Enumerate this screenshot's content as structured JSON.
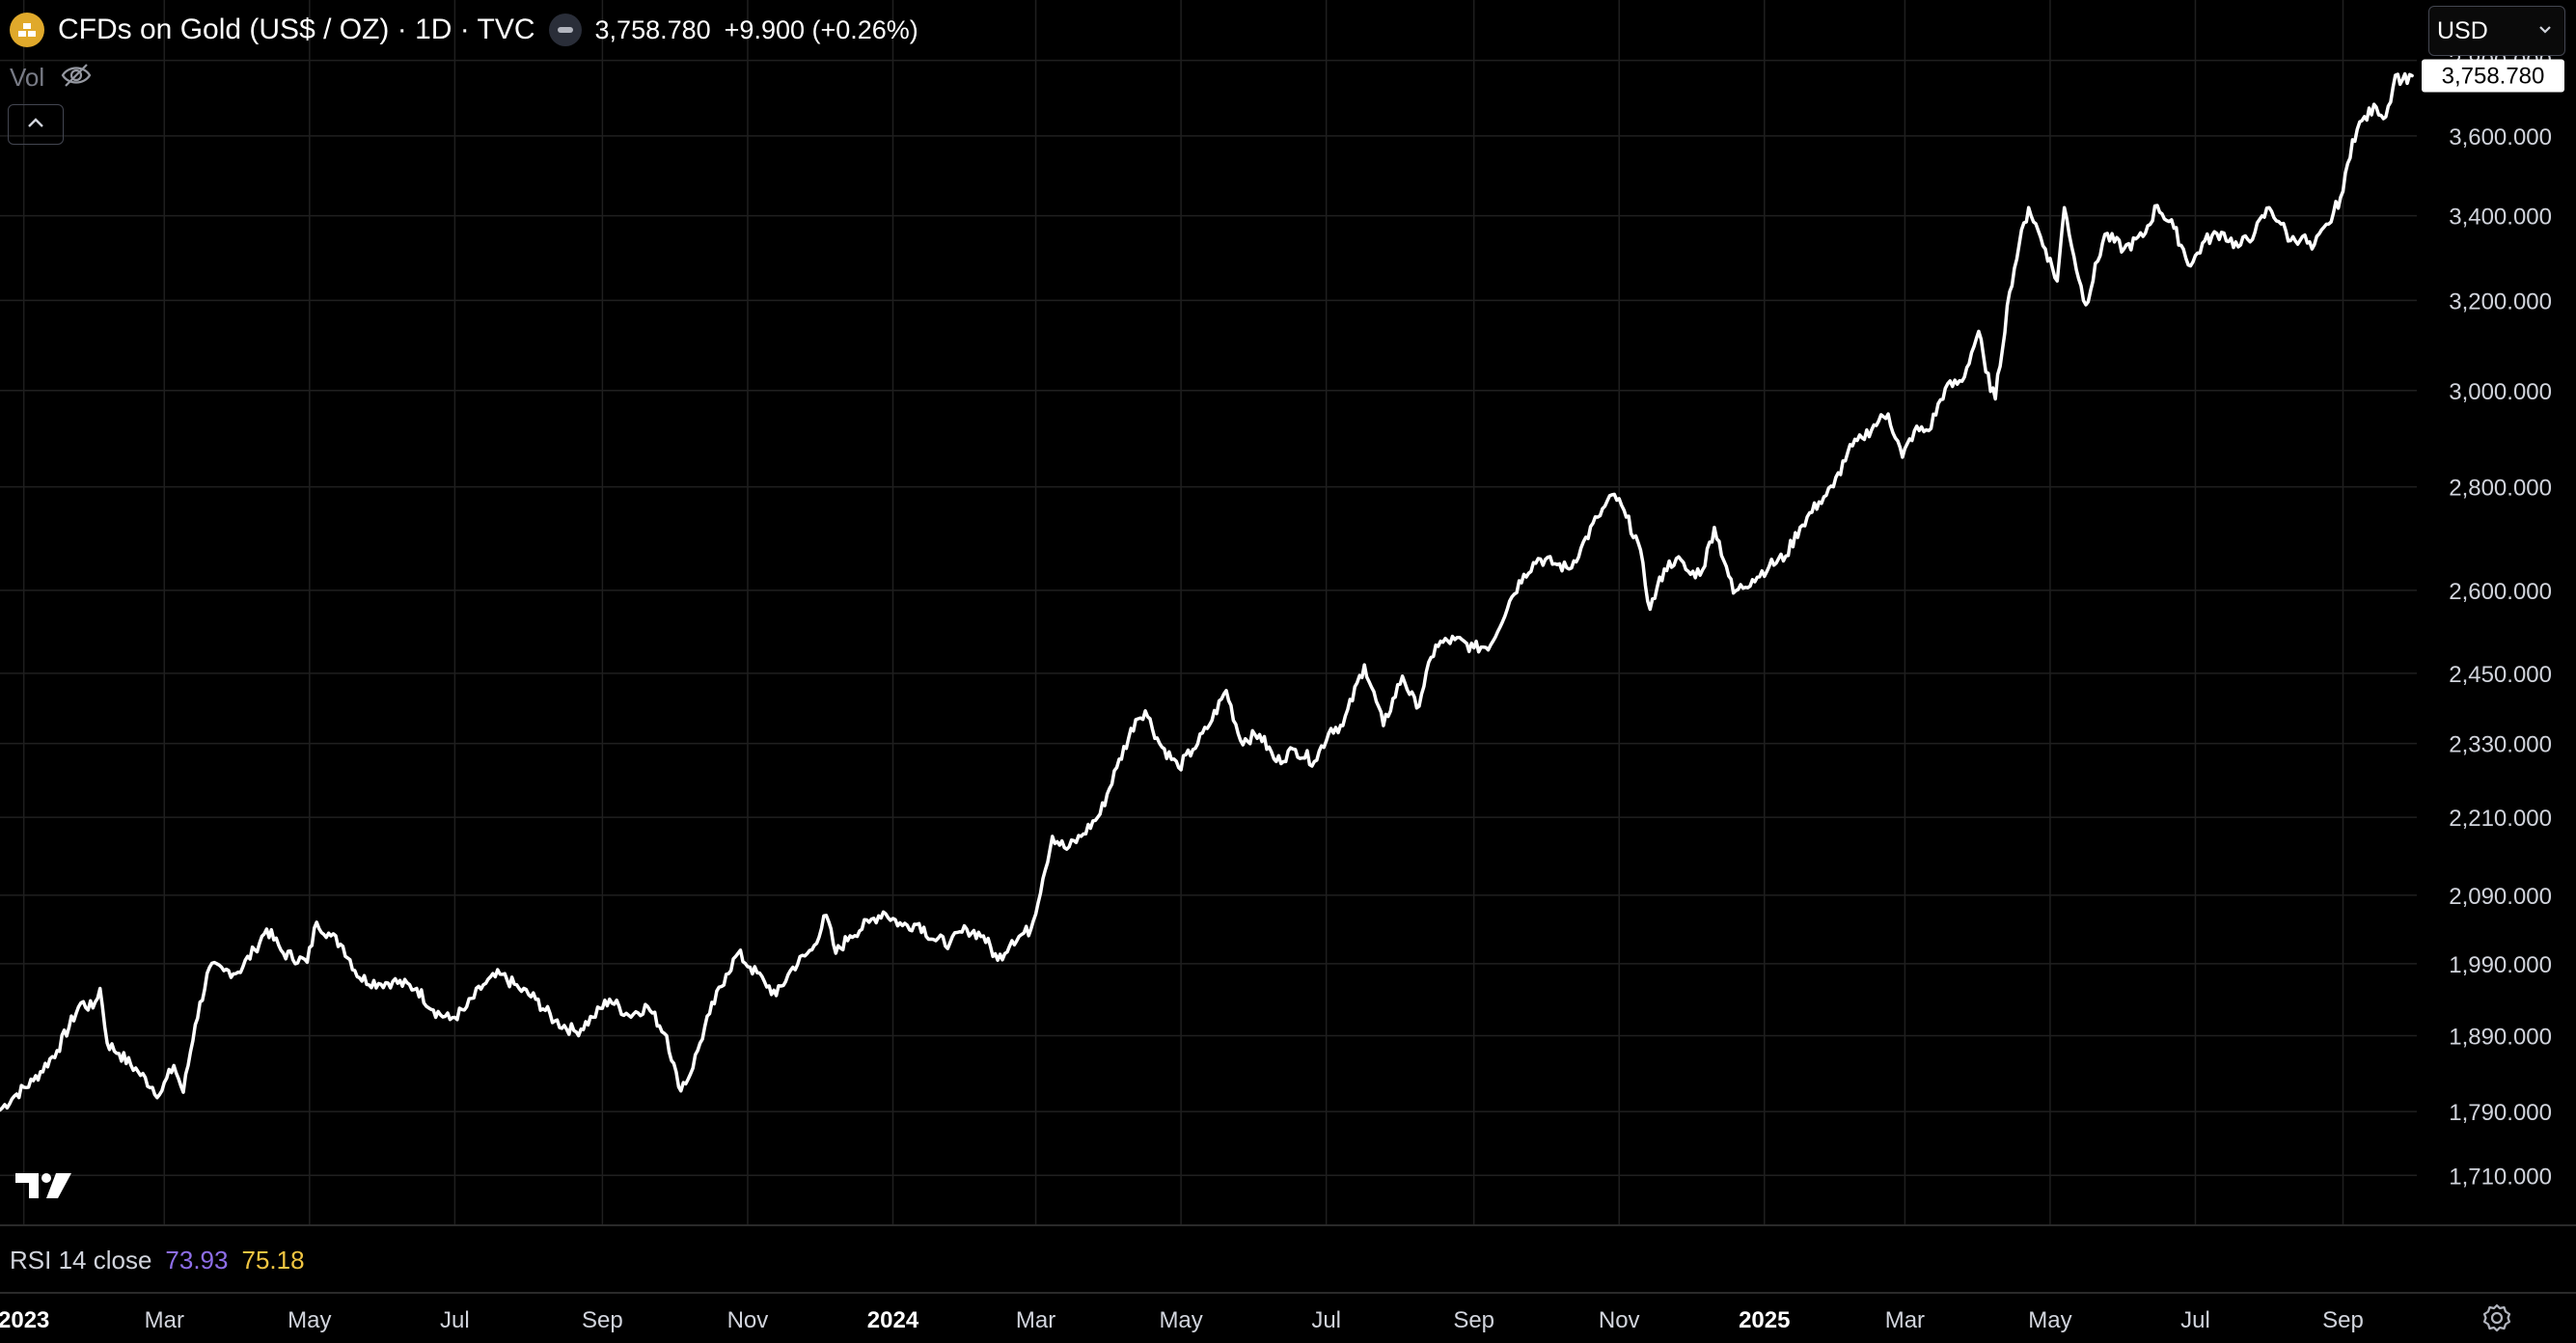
{
  "header": {
    "symbol_title": "CFDs on Gold (US$ / OZ) · 1D · TVC",
    "last_price": "3,758.780",
    "change": "+9.900 (+0.26%)",
    "icons": {
      "symbol": "gold-bars-icon",
      "market_status": "market-status-icon"
    }
  },
  "volume": {
    "label": "Vol",
    "icon": "eye-off-icon"
  },
  "collapse_button": {
    "icon": "chevron-up-icon"
  },
  "currency_selector": {
    "label": "USD",
    "icon": "chevron-down-icon"
  },
  "rsi": {
    "label": "RSI 14 close",
    "value1": "73.93",
    "value2": "75.18"
  },
  "logo": {
    "icon": "tradingview-logo-icon"
  },
  "settings": {
    "icon": "gear-icon"
  },
  "colors": {
    "background": "#000000",
    "line": "#ffffff",
    "grid": "#1f1f1f",
    "rsi_value1": "#8e6ee8",
    "rsi_value2": "#f0c542",
    "symbol_icon": "#e0a92b"
  },
  "chart_data": {
    "type": "line",
    "title": "CFDs on Gold (US$ / OZ) · 1D · TVC",
    "xlabel": "",
    "ylabel": "",
    "y_scale": "log",
    "grid": true,
    "xlim": [
      "2022-12-22",
      "2025-10-02"
    ],
    "ylim": [
      1650,
      3860
    ],
    "last_value_label": "3,758.780",
    "y_ticks": [
      "1,710.000",
      "1,790.000",
      "1,890.000",
      "1,990.000",
      "2,090.000",
      "2,210.000",
      "2,330.000",
      "2,450.000",
      "2,600.000",
      "2,800.000",
      "3,000.000",
      "3,200.000",
      "3,400.000",
      "3,600.000",
      "3,800.000"
    ],
    "y_tick_values": [
      1710,
      1790,
      1890,
      1990,
      2090,
      2210,
      2330,
      2450,
      2600,
      2800,
      3000,
      3200,
      3400,
      3600,
      3800
    ],
    "x_ticks": [
      {
        "label": "2023",
        "date": "2023-01-01",
        "year": true
      },
      {
        "label": "Mar",
        "date": "2023-03-01",
        "year": false
      },
      {
        "label": "May",
        "date": "2023-05-01",
        "year": false
      },
      {
        "label": "Jul",
        "date": "2023-07-01",
        "year": false
      },
      {
        "label": "Sep",
        "date": "2023-09-01",
        "year": false
      },
      {
        "label": "Nov",
        "date": "2023-11-01",
        "year": false
      },
      {
        "label": "2024",
        "date": "2024-01-01",
        "year": true
      },
      {
        "label": "Mar",
        "date": "2024-03-01",
        "year": false
      },
      {
        "label": "May",
        "date": "2024-05-01",
        "year": false
      },
      {
        "label": "Jul",
        "date": "2024-07-01",
        "year": false
      },
      {
        "label": "Sep",
        "date": "2024-09-01",
        "year": false
      },
      {
        "label": "Nov",
        "date": "2024-11-01",
        "year": false
      },
      {
        "label": "2025",
        "date": "2025-01-01",
        "year": true
      },
      {
        "label": "Mar",
        "date": "2025-03-01",
        "year": false
      },
      {
        "label": "May",
        "date": "2025-05-01",
        "year": false
      },
      {
        "label": "Jul",
        "date": "2025-07-01",
        "year": false
      },
      {
        "label": "Sep",
        "date": "2025-09-01",
        "year": false
      }
    ],
    "series": [
      {
        "values": [
          [
            "2022-12-22",
            1792
          ],
          [
            "2022-12-28",
            1810
          ],
          [
            "2023-01-05",
            1830
          ],
          [
            "2023-01-15",
            1870
          ],
          [
            "2023-01-25",
            1935
          ],
          [
            "2023-01-30",
            1928
          ],
          [
            "2023-02-02",
            1955
          ],
          [
            "2023-02-05",
            1880
          ],
          [
            "2023-02-10",
            1866
          ],
          [
            "2023-02-18",
            1842
          ],
          [
            "2023-02-27",
            1812
          ],
          [
            "2023-03-05",
            1850
          ],
          [
            "2023-03-09",
            1815
          ],
          [
            "2023-03-14",
            1905
          ],
          [
            "2023-03-20",
            1985
          ],
          [
            "2023-03-26",
            1980
          ],
          [
            "2023-04-01",
            1978
          ],
          [
            "2023-04-08",
            2010
          ],
          [
            "2023-04-13",
            2040
          ],
          [
            "2023-04-20",
            2005
          ],
          [
            "2023-04-30",
            1992
          ],
          [
            "2023-05-04",
            2050
          ],
          [
            "2023-05-10",
            2030
          ],
          [
            "2023-05-15",
            2015
          ],
          [
            "2023-05-22",
            1970
          ],
          [
            "2023-05-30",
            1962
          ],
          [
            "2023-06-05",
            1965
          ],
          [
            "2023-06-15",
            1955
          ],
          [
            "2023-06-22",
            1925
          ],
          [
            "2023-06-29",
            1912
          ],
          [
            "2023-07-05",
            1925
          ],
          [
            "2023-07-13",
            1960
          ],
          [
            "2023-07-20",
            1975
          ],
          [
            "2023-07-28",
            1955
          ],
          [
            "2023-08-04",
            1940
          ],
          [
            "2023-08-12",
            1910
          ],
          [
            "2023-08-21",
            1895
          ],
          [
            "2023-08-28",
            1915
          ],
          [
            "2023-09-04",
            1940
          ],
          [
            "2023-09-12",
            1918
          ],
          [
            "2023-09-20",
            1930
          ],
          [
            "2023-09-28",
            1890
          ],
          [
            "2023-10-03",
            1822
          ],
          [
            "2023-10-07",
            1832
          ],
          [
            "2023-10-11",
            1870
          ],
          [
            "2023-10-16",
            1920
          ],
          [
            "2023-10-23",
            1975
          ],
          [
            "2023-10-28",
            2005
          ],
          [
            "2023-11-02",
            1985
          ],
          [
            "2023-11-08",
            1965
          ],
          [
            "2023-11-13",
            1945
          ],
          [
            "2023-11-20",
            1985
          ],
          [
            "2023-11-28",
            2010
          ],
          [
            "2023-12-04",
            2060
          ],
          [
            "2023-12-08",
            2005
          ],
          [
            "2023-12-14",
            2030
          ],
          [
            "2023-12-22",
            2050
          ],
          [
            "2023-12-28",
            2065
          ],
          [
            "2024-01-05",
            2045
          ],
          [
            "2024-01-12",
            2048
          ],
          [
            "2024-01-18",
            2025
          ],
          [
            "2024-01-25",
            2020
          ],
          [
            "2024-02-01",
            2040
          ],
          [
            "2024-02-08",
            2030
          ],
          [
            "2024-02-14",
            1995
          ],
          [
            "2024-02-20",
            2023
          ],
          [
            "2024-02-28",
            2040
          ],
          [
            "2024-03-04",
            2115
          ],
          [
            "2024-03-08",
            2180
          ],
          [
            "2024-03-14",
            2160
          ],
          [
            "2024-03-20",
            2180
          ],
          [
            "2024-03-28",
            2215
          ],
          [
            "2024-04-04",
            2290
          ],
          [
            "2024-04-12",
            2370
          ],
          [
            "2024-04-16",
            2385
          ],
          [
            "2024-04-22",
            2330
          ],
          [
            "2024-04-30",
            2290
          ],
          [
            "2024-05-06",
            2320
          ],
          [
            "2024-05-12",
            2355
          ],
          [
            "2024-05-20",
            2420
          ],
          [
            "2024-05-26",
            2335
          ],
          [
            "2024-06-03",
            2345
          ],
          [
            "2024-06-10",
            2300
          ],
          [
            "2024-06-18",
            2320
          ],
          [
            "2024-06-26",
            2300
          ],
          [
            "2024-07-03",
            2355
          ],
          [
            "2024-07-08",
            2360
          ],
          [
            "2024-07-17",
            2465
          ],
          [
            "2024-07-25",
            2360
          ],
          [
            "2024-08-02",
            2445
          ],
          [
            "2024-08-08",
            2390
          ],
          [
            "2024-08-16",
            2500
          ],
          [
            "2024-08-24",
            2510
          ],
          [
            "2024-09-01",
            2495
          ],
          [
            "2024-09-08",
            2500
          ],
          [
            "2024-09-16",
            2580
          ],
          [
            "2024-09-22",
            2630
          ],
          [
            "2024-09-28",
            2660
          ],
          [
            "2024-10-05",
            2650
          ],
          [
            "2024-10-11",
            2640
          ],
          [
            "2024-10-16",
            2680
          ],
          [
            "2024-10-23",
            2740
          ],
          [
            "2024-10-30",
            2785
          ],
          [
            "2024-11-04",
            2740
          ],
          [
            "2024-11-09",
            2690
          ],
          [
            "2024-11-14",
            2565
          ],
          [
            "2024-11-20",
            2640
          ],
          [
            "2024-11-25",
            2660
          ],
          [
            "2024-12-01",
            2630
          ],
          [
            "2024-12-06",
            2638
          ],
          [
            "2024-12-11",
            2720
          ],
          [
            "2024-12-16",
            2645
          ],
          [
            "2024-12-19",
            2595
          ],
          [
            "2024-12-27",
            2620
          ],
          [
            "2025-01-03",
            2645
          ],
          [
            "2025-01-10",
            2665
          ],
          [
            "2025-01-16",
            2720
          ],
          [
            "2025-01-24",
            2770
          ],
          [
            "2025-01-30",
            2800
          ],
          [
            "2025-02-05",
            2870
          ],
          [
            "2025-02-11",
            2900
          ],
          [
            "2025-02-18",
            2935
          ],
          [
            "2025-02-22",
            2950
          ],
          [
            "2025-02-28",
            2860
          ],
          [
            "2025-03-05",
            2915
          ],
          [
            "2025-03-11",
            2915
          ],
          [
            "2025-03-18",
            3005
          ],
          [
            "2025-03-25",
            3020
          ],
          [
            "2025-04-01",
            3130
          ],
          [
            "2025-04-04",
            3040
          ],
          [
            "2025-04-08",
            2982
          ],
          [
            "2025-04-14",
            3220
          ],
          [
            "2025-04-18",
            3330
          ],
          [
            "2025-04-22",
            3420
          ],
          [
            "2025-04-29",
            3320
          ],
          [
            "2025-05-04",
            3245
          ],
          [
            "2025-05-07",
            3420
          ],
          [
            "2025-05-13",
            3250
          ],
          [
            "2025-05-16",
            3190
          ],
          [
            "2025-05-24",
            3355
          ],
          [
            "2025-06-01",
            3320
          ],
          [
            "2025-06-09",
            3350
          ],
          [
            "2025-06-15",
            3425
          ],
          [
            "2025-06-22",
            3370
          ],
          [
            "2025-06-29",
            3280
          ],
          [
            "2025-07-05",
            3340
          ],
          [
            "2025-07-12",
            3360
          ],
          [
            "2025-07-19",
            3325
          ],
          [
            "2025-07-26",
            3360
          ],
          [
            "2025-08-01",
            3420
          ],
          [
            "2025-08-06",
            3380
          ],
          [
            "2025-08-10",
            3340
          ],
          [
            "2025-08-15",
            3350
          ],
          [
            "2025-08-19",
            3320
          ],
          [
            "2025-08-26",
            3380
          ],
          [
            "2025-09-01",
            3460
          ],
          [
            "2025-09-05",
            3590
          ],
          [
            "2025-09-09",
            3640
          ],
          [
            "2025-09-15",
            3675
          ],
          [
            "2025-09-19",
            3650
          ],
          [
            "2025-09-23",
            3760
          ],
          [
            "2025-09-26",
            3748
          ],
          [
            "2025-09-30",
            3758.78
          ]
        ]
      }
    ]
  }
}
